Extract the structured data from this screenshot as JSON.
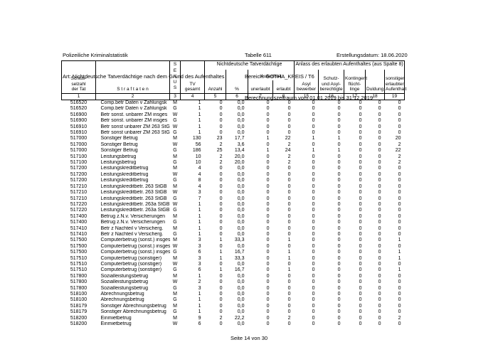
{
  "page_header": {
    "title": "Polizeiliche Kriminalstatistik",
    "subtitle": "Art: Nichtdeutsche Tatverdächtige nach dem Grund des Aufenthaltes",
    "table_number": "Tabelle 611",
    "bereich": "Bereich: GOTHA_KREIS / T6",
    "zeitraum": "Berechnungszeitraum vom 01.01.2019 bis 31.12.2019",
    "erstellungsdatum": "Erstellungsdatum: 18.06.2020"
  },
  "table": {
    "header": {
      "key_label": "Schlüs-\nselzahl\nder Tat",
      "offense_label": "S t r a f t a t e n",
      "sexus_label": "S\nE\nX\nU\nS",
      "tv_label": "TV\ngesamt",
      "group_nd": "Nichtdeutsche Tatverdächtige",
      "group_anlass": "Anlass des erlaubten Aufenthaltes (aus Spalte 8)",
      "anzahl_label": "Anzahl",
      "percent_label": "%",
      "aufenthalt_label": "Aufenthalt",
      "unerlaubt_label": "unerlaubt",
      "erlaubt_label": "erlaubt",
      "asyl_label": "Asyl\nbewerber",
      "schutz_label": "Schutz-\nund Asyl-\nberechtigte",
      "kontingent_label": "Kontingent\nflücht-\nlinge",
      "duldung_label": "Duldung",
      "sonstiger_label": "sonstiger\nerlaubter\nAufenthalt",
      "column_numbers": [
        "1",
        "2",
        "3",
        "4",
        "5",
        "6",
        "7",
        "8",
        "15",
        "16",
        "17",
        "18",
        "19"
      ]
    },
    "column_names": [
      "key",
      "offense",
      "sexus",
      "tv-gesamt",
      "anzahl",
      "percent",
      "unerlaubt",
      "erlaubt",
      "asylbewerber",
      "schutz-asylberechtigte",
      "kontingentfluechtlinge",
      "duldung",
      "sonstiger-aufenthalt"
    ],
    "rows": [
      [
        "516520",
        "Comp.betr Daten v Zahlungsk",
        "M",
        "1",
        "0",
        "0,0",
        "0",
        "0",
        "0",
        "0",
        "0",
        "0",
        "0"
      ],
      [
        "516520",
        "Comp.betr Daten v Zahlungsk",
        "G",
        "1",
        "0",
        "0,0",
        "0",
        "0",
        "0",
        "0",
        "0",
        "0",
        "0"
      ],
      [
        "516900",
        "Betr sonst. unbarer ZM insges",
        "W",
        "1",
        "0",
        "0,0",
        "0",
        "0",
        "0",
        "0",
        "0",
        "0",
        "0"
      ],
      [
        "516900",
        "Betr sonst. unbarer ZM insges",
        "G",
        "1",
        "0",
        "0,0",
        "0",
        "0",
        "0",
        "0",
        "0",
        "0",
        "0"
      ],
      [
        "516910",
        "Betr sonst unbarer ZM 263 StGB",
        "W",
        "1",
        "0",
        "0,0",
        "0",
        "0",
        "0",
        "0",
        "0",
        "0",
        "0"
      ],
      [
        "516910",
        "Betr sonst unbarer ZM 263 StGB",
        "G",
        "1",
        "0",
        "0,0",
        "0",
        "0",
        "0",
        "0",
        "0",
        "0",
        "0"
      ],
      [
        "517000",
        "Sonstiger Betrug",
        "M",
        "130",
        "23",
        "17,7",
        "1",
        "22",
        "1",
        "1",
        "0",
        "0",
        "20"
      ],
      [
        "517000",
        "Sonstiger Betrug",
        "W",
        "56",
        "2",
        "3,6",
        "0",
        "2",
        "0",
        "0",
        "0",
        "0",
        "2"
      ],
      [
        "517000",
        "Sonstiger Betrug",
        "G",
        "186",
        "25",
        "13,4",
        "1",
        "24",
        "1",
        "1",
        "0",
        "0",
        "22"
      ],
      [
        "517100",
        "Leistungsbetrug",
        "M",
        "10",
        "2",
        "20,0",
        "0",
        "2",
        "0",
        "0",
        "0",
        "0",
        "2"
      ],
      [
        "517100",
        "Leistungsbetrug",
        "G",
        "10",
        "2",
        "20,0",
        "0",
        "2",
        "0",
        "0",
        "0",
        "0",
        "2"
      ],
      [
        "517200",
        "Leistungskreditbetrug",
        "M",
        "4",
        "0",
        "0,0",
        "0",
        "0",
        "0",
        "0",
        "0",
        "0",
        "0"
      ],
      [
        "517200",
        "Leistungskreditbetrug",
        "W",
        "4",
        "0",
        "0,0",
        "0",
        "0",
        "0",
        "0",
        "0",
        "0",
        "0"
      ],
      [
        "517200",
        "Leistungskreditbetrug",
        "G",
        "8",
        "0",
        "0,0",
        "0",
        "0",
        "0",
        "0",
        "0",
        "0",
        "0"
      ],
      [
        "517210",
        "Leistungskreditbetr. 263 StGB",
        "M",
        "4",
        "0",
        "0,0",
        "0",
        "0",
        "0",
        "0",
        "0",
        "0",
        "0"
      ],
      [
        "517210",
        "Leistungskreditbetr. 263 StGB",
        "W",
        "3",
        "0",
        "0,0",
        "0",
        "0",
        "0",
        "0",
        "0",
        "0",
        "0"
      ],
      [
        "517210",
        "Leistungskreditbetr. 263 StGB",
        "G",
        "7",
        "0",
        "0,0",
        "0",
        "0",
        "0",
        "0",
        "0",
        "0",
        "0"
      ],
      [
        "517220",
        "Leistungskreditbetr. 263a StGB",
        "W",
        "1",
        "0",
        "0,0",
        "0",
        "0",
        "0",
        "0",
        "0",
        "0",
        "0"
      ],
      [
        "517220",
        "Leistungskreditbetr. 263a StGB",
        "G",
        "1",
        "0",
        "0,0",
        "0",
        "0",
        "0",
        "0",
        "0",
        "0",
        "0"
      ],
      [
        "517400",
        "Betrug z.N.v. Versicherungen",
        "M",
        "1",
        "0",
        "0,0",
        "0",
        "0",
        "0",
        "0",
        "0",
        "0",
        "0"
      ],
      [
        "517400",
        "Betrug z.N.v. Versicherungen",
        "G",
        "1",
        "0",
        "0,0",
        "0",
        "0",
        "0",
        "0",
        "0",
        "0",
        "0"
      ],
      [
        "517410",
        "Betr z Nachteil v Versicherg.",
        "M",
        "1",
        "0",
        "0,0",
        "0",
        "0",
        "0",
        "0",
        "0",
        "0",
        "0"
      ],
      [
        "517410",
        "Betr z Nachteil v Versicherg.",
        "G",
        "1",
        "0",
        "0,0",
        "0",
        "0",
        "0",
        "0",
        "0",
        "0",
        "0"
      ],
      [
        "517500",
        "Computerbetrug (sonst.) insges",
        "M",
        "3",
        "1",
        "33,3",
        "0",
        "1",
        "0",
        "0",
        "0",
        "0",
        "1"
      ],
      [
        "517500",
        "Computerbetrug (sonst.) insges",
        "W",
        "3",
        "0",
        "0,0",
        "0",
        "0",
        "0",
        "0",
        "0",
        "0",
        "0"
      ],
      [
        "517500",
        "Computerbetrug (sonst.) insges",
        "G",
        "6",
        "1",
        "16,7",
        "0",
        "1",
        "0",
        "0",
        "0",
        "0",
        "1"
      ],
      [
        "517510",
        "Computerbetrug (sonstiger)",
        "M",
        "3",
        "1",
        "33,3",
        "0",
        "1",
        "0",
        "0",
        "0",
        "0",
        "1"
      ],
      [
        "517510",
        "Computerbetrug (sonstiger)",
        "W",
        "3",
        "0",
        "0,0",
        "0",
        "0",
        "0",
        "0",
        "0",
        "0",
        "0"
      ],
      [
        "517510",
        "Computerbetrug (sonstiger)",
        "G",
        "6",
        "1",
        "16,7",
        "0",
        "1",
        "0",
        "0",
        "0",
        "0",
        "1"
      ],
      [
        "517800",
        "Sozialleistungsbetrug",
        "M",
        "1",
        "0",
        "0,0",
        "0",
        "0",
        "0",
        "0",
        "0",
        "0",
        "0"
      ],
      [
        "517800",
        "Sozialleistungsbetrug",
        "W",
        "2",
        "0",
        "0,0",
        "0",
        "0",
        "0",
        "0",
        "0",
        "0",
        "0"
      ],
      [
        "517800",
        "Sozialleistungsbetrug",
        "G",
        "3",
        "0",
        "0,0",
        "0",
        "0",
        "0",
        "0",
        "0",
        "0",
        "0"
      ],
      [
        "518100",
        "Abrechnungsbetrug",
        "M",
        "1",
        "0",
        "0,0",
        "0",
        "0",
        "0",
        "0",
        "0",
        "0",
        "0"
      ],
      [
        "518100",
        "Abrechnungsbetrug",
        "G",
        "1",
        "0",
        "0,0",
        "0",
        "0",
        "0",
        "0",
        "0",
        "0",
        "0"
      ],
      [
        "518179",
        "Sonstiger Abrechnungsbetrug",
        "M",
        "1",
        "0",
        "0,0",
        "0",
        "0",
        "0",
        "0",
        "0",
        "0",
        "0"
      ],
      [
        "518179",
        "Sonstiger Abrechnungsbetrug",
        "G",
        "1",
        "0",
        "0,0",
        "0",
        "0",
        "0",
        "0",
        "0",
        "0",
        "0"
      ],
      [
        "518200",
        "Einmietbetrug",
        "M",
        "9",
        "2",
        "22,2",
        "0",
        "2",
        "0",
        "0",
        "0",
        "0",
        "2"
      ],
      [
        "518200",
        "Einmietbetrug",
        "W",
        "6",
        "0",
        "0,0",
        "0",
        "0",
        "0",
        "0",
        "0",
        "0",
        "0"
      ]
    ]
  },
  "footer": {
    "page_label": "Seite 14 von 30"
  }
}
